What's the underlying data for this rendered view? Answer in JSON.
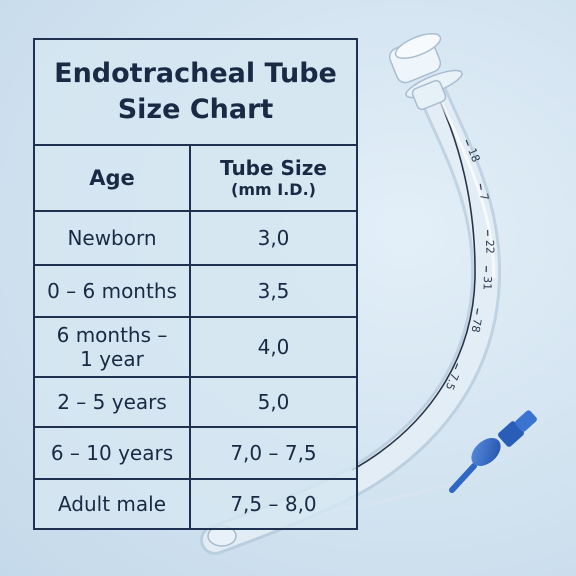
{
  "chart": {
    "title_line1": "Endotracheal Tube",
    "title_line2": "Size Chart",
    "header_age": "Age",
    "header_size": "Tube Size",
    "header_size_unit": "(mm I.D.)",
    "rows": [
      {
        "age": "Newborn",
        "size": "3,0"
      },
      {
        "age": "0 – 6 months",
        "size": "3,5"
      },
      {
        "age_line1": "6 months –",
        "age_line2": "1 year",
        "size": "4,0"
      },
      {
        "age": "2 – 5 years",
        "size": "5,0"
      },
      {
        "age": "6 – 10 years",
        "size": "7,0 – 7,5"
      },
      {
        "age": "Adult male",
        "size": "7,5 – 8,0"
      }
    ]
  },
  "tube_markings": [
    "18",
    "7",
    "22",
    "31",
    "78",
    "7.5"
  ],
  "colors": {
    "background": "#d2e3f0",
    "table_border": "#1f3150",
    "tube": "#e4eef6",
    "pilot_balloon": "#2f67c4"
  }
}
